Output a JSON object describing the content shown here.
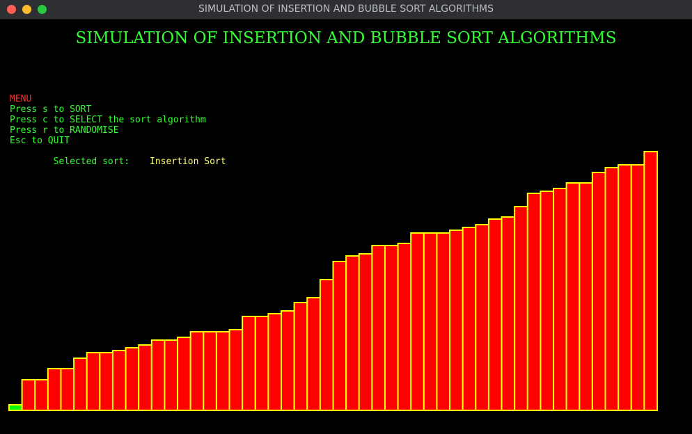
{
  "window": {
    "title": "SIMULATION OF INSERTION AND BUBBLE SORT ALGORITHMS"
  },
  "heading": "SIMULATION OF INSERTION AND BUBBLE SORT ALGORITHMS",
  "menu": {
    "title": "MENU",
    "items": [
      "Press s to SORT",
      "Press c to SELECT the sort algorithm",
      "Press r to RANDOMISE",
      "Esc to QUIT"
    ],
    "selected_label": "Selected sort:",
    "selected_value": "Insertion Sort"
  },
  "colors": {
    "bar_fill": "#ff0000",
    "bar_border": "#ffff00",
    "highlight_fill": "#00ff00",
    "heading": "#33ff33",
    "menu_title": "#ff2a2a",
    "selected_value": "#ffff66"
  },
  "chart_data": {
    "type": "bar",
    "title": "",
    "ylim": [
      0,
      372
    ],
    "highlight_index": 0,
    "values": [
      8,
      44,
      44,
      60,
      60,
      75,
      83,
      83,
      86,
      90,
      94,
      101,
      101,
      105,
      113,
      113,
      113,
      116,
      135,
      135,
      139,
      143,
      155,
      162,
      188,
      214,
      222,
      225,
      237,
      237,
      240,
      255,
      255,
      255,
      259,
      263,
      267,
      275,
      278,
      293,
      312,
      315,
      319,
      327,
      327,
      342,
      349,
      353,
      353,
      372
    ]
  }
}
